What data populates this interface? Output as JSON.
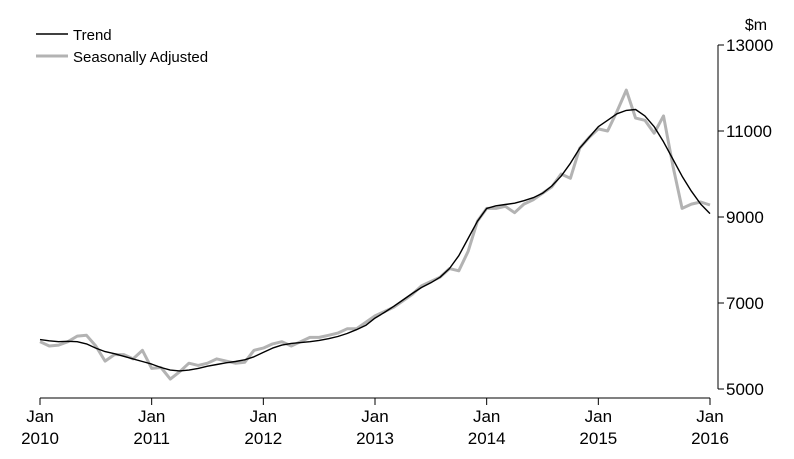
{
  "chart_data": {
    "type": "line",
    "y_label": "$m",
    "categories": [
      "Jan 2010",
      null,
      null,
      null,
      null,
      null,
      null,
      null,
      null,
      null,
      null,
      null,
      "Jan 2011",
      null,
      null,
      null,
      null,
      null,
      null,
      null,
      null,
      null,
      null,
      null,
      "Jan 2012",
      null,
      null,
      null,
      null,
      null,
      null,
      null,
      null,
      null,
      null,
      null,
      "Jan 2013",
      null,
      null,
      null,
      null,
      null,
      null,
      null,
      null,
      null,
      null,
      null,
      "Jan 2014",
      null,
      null,
      null,
      null,
      null,
      null,
      null,
      null,
      null,
      null,
      null,
      "Jan 2015",
      null,
      null,
      null,
      null,
      null,
      null,
      null,
      null,
      null,
      null,
      null,
      "Jan 2016"
    ],
    "series": [
      {
        "name": "Trend",
        "color": "#000000",
        "values": [
          6150,
          6120,
          6100,
          6110,
          6100,
          6050,
          5950,
          5870,
          5820,
          5760,
          5700,
          5640,
          5580,
          5500,
          5440,
          5420,
          5440,
          5480,
          5530,
          5570,
          5610,
          5640,
          5680,
          5750,
          5850,
          5950,
          6020,
          6060,
          6080,
          6100,
          6130,
          6170,
          6220,
          6290,
          6380,
          6480,
          6650,
          6780,
          6920,
          7070,
          7220,
          7360,
          7470,
          7600,
          7800,
          8100,
          8500,
          8900,
          9200,
          9260,
          9290,
          9320,
          9380,
          9450,
          9550,
          9720,
          9950,
          10250,
          10600,
          10850,
          11100,
          11250,
          11400,
          11480,
          11500,
          11350,
          11100,
          10750,
          10350,
          9950,
          9600,
          9300,
          9080
        ]
      },
      {
        "name": "Seasonally Adjusted",
        "color": "#b3b3b3",
        "values": [
          6100,
          6000,
          6020,
          6100,
          6230,
          6250,
          6000,
          5650,
          5800,
          5800,
          5700,
          5900,
          5480,
          5500,
          5230,
          5400,
          5600,
          5550,
          5600,
          5700,
          5650,
          5600,
          5620,
          5900,
          5950,
          6050,
          6100,
          6000,
          6100,
          6200,
          6200,
          6250,
          6300,
          6400,
          6400,
          6550,
          6700,
          6800,
          6900,
          7050,
          7200,
          7400,
          7500,
          7600,
          7800,
          7750,
          8200,
          8900,
          9200,
          9200,
          9250,
          9100,
          9300,
          9400,
          9550,
          9700,
          10000,
          9900,
          10600,
          10850,
          11050,
          11000,
          11450,
          11950,
          11300,
          11250,
          10950,
          11350,
          10200,
          9200,
          9300,
          9350,
          9280
        ]
      }
    ],
    "ylim": [
      5000,
      13000
    ],
    "yticks": [
      5000,
      7000,
      9000,
      11000,
      13000
    ],
    "legend": "top-left"
  }
}
